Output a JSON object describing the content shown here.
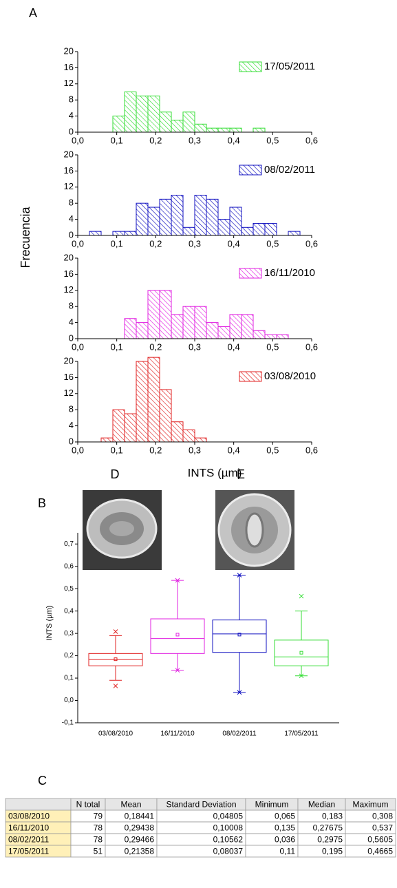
{
  "panel_labels": {
    "a": "A",
    "b": "B",
    "c": "C",
    "d": "D",
    "e": "E"
  },
  "histogram_axes": {
    "xlabel": "INTS (µm)",
    "ylabel": "Frecuencia"
  },
  "chart_data": [
    {
      "type": "histogram",
      "series": [
        {
          "name": "17/05/2011",
          "color": "#33dd33",
          "values": [
            4,
            10,
            9,
            9,
            5,
            3,
            5,
            2,
            1,
            1,
            1,
            0,
            1
          ]
        }
      ],
      "bins": [
        0.09,
        0.12,
        0.15,
        0.18,
        0.21,
        0.24,
        0.27,
        0.3,
        0.33,
        0.36,
        0.39,
        0.42,
        0.45,
        0.48
      ],
      "xlim": [
        0,
        0.6
      ],
      "xticks": [
        {
          "value": 0,
          "label": "0,0"
        },
        {
          "value": 0.1,
          "label": "0,1"
        },
        {
          "value": 0.2,
          "label": "0,2"
        },
        {
          "value": 0.3,
          "label": "0,3"
        },
        {
          "value": 0.4,
          "label": "0,4"
        },
        {
          "value": 0.5,
          "label": "0,5"
        },
        {
          "value": 0.6,
          "label": "0,6"
        }
      ],
      "ylim": [
        0,
        20
      ],
      "yticks": [
        0,
        4,
        8,
        12,
        16,
        20
      ]
    },
    {
      "type": "histogram",
      "series": [
        {
          "name": "08/02/2011",
          "color": "#1010c0",
          "values": [
            1,
            0,
            1,
            1,
            8,
            7,
            9,
            10,
            2,
            10,
            9,
            4,
            7,
            2,
            3,
            3,
            0,
            1
          ]
        }
      ],
      "bins": [
        0.03,
        0.06,
        0.09,
        0.12,
        0.15,
        0.18,
        0.21,
        0.24,
        0.27,
        0.3,
        0.33,
        0.36,
        0.39,
        0.42,
        0.45,
        0.48,
        0.51,
        0.54,
        0.57
      ],
      "xlim": [
        0,
        0.6
      ],
      "xticks": [
        {
          "value": 0,
          "label": "0,0"
        },
        {
          "value": 0.1,
          "label": "0,1"
        },
        {
          "value": 0.2,
          "label": "0,2"
        },
        {
          "value": 0.3,
          "label": "0,3"
        },
        {
          "value": 0.4,
          "label": "0,4"
        },
        {
          "value": 0.5,
          "label": "0,5"
        },
        {
          "value": 0.6,
          "label": "0,6"
        }
      ],
      "ylim": [
        0,
        20
      ],
      "yticks": [
        0,
        4,
        8,
        12,
        16,
        20
      ]
    },
    {
      "type": "histogram",
      "series": [
        {
          "name": "16/11/2010",
          "color": "#e020e0",
          "values": [
            5,
            4,
            12,
            12,
            6,
            8,
            8,
            4,
            3,
            6,
            6,
            2,
            1,
            1
          ]
        }
      ],
      "bins": [
        0.12,
        0.15,
        0.18,
        0.21,
        0.24,
        0.27,
        0.3,
        0.33,
        0.36,
        0.39,
        0.42,
        0.45,
        0.48,
        0.51,
        0.54
      ],
      "xlim": [
        0,
        0.6
      ],
      "xticks": [
        {
          "value": 0,
          "label": "0,0"
        },
        {
          "value": 0.1,
          "label": "0,1"
        },
        {
          "value": 0.2,
          "label": "0,2"
        },
        {
          "value": 0.3,
          "label": "0,3"
        },
        {
          "value": 0.4,
          "label": "0,4"
        },
        {
          "value": 0.5,
          "label": "0,5"
        },
        {
          "value": 0.6,
          "label": "0,6"
        }
      ],
      "ylim": [
        0,
        20
      ],
      "yticks": [
        0,
        4,
        8,
        12,
        16,
        20
      ]
    },
    {
      "type": "histogram",
      "series": [
        {
          "name": "03/08/2010",
          "color": "#e02020",
          "values": [
            1,
            8,
            7,
            20,
            21,
            13,
            5,
            3,
            1
          ]
        }
      ],
      "bins": [
        0.06,
        0.09,
        0.12,
        0.15,
        0.18,
        0.21,
        0.24,
        0.27,
        0.3,
        0.33
      ],
      "xlim": [
        0,
        0.6
      ],
      "xticks": [
        {
          "value": 0,
          "label": "0,0"
        },
        {
          "value": 0.1,
          "label": "0,1"
        },
        {
          "value": 0.2,
          "label": "0,2"
        },
        {
          "value": 0.3,
          "label": "0,3"
        },
        {
          "value": 0.4,
          "label": "0,4"
        },
        {
          "value": 0.5,
          "label": "0,5"
        },
        {
          "value": 0.6,
          "label": "0,6"
        }
      ],
      "ylim": [
        0,
        20
      ],
      "yticks": [
        0,
        4,
        8,
        12,
        16,
        20
      ]
    },
    {
      "type": "box",
      "ylabel": "INTS (µm)",
      "categories": [
        "03/08/2010",
        "16/11/2010",
        "08/02/2011",
        "17/05/2011"
      ],
      "colors": [
        "#e02020",
        "#e020e0",
        "#1010c0",
        "#33dd33"
      ],
      "whisker_low": [
        0.09,
        0.135,
        0.036,
        0.11
      ],
      "q1": [
        0.155,
        0.21,
        0.215,
        0.155
      ],
      "median": [
        0.183,
        0.27675,
        0.2975,
        0.195
      ],
      "q3": [
        0.21,
        0.365,
        0.36,
        0.27
      ],
      "whisker_high": [
        0.29,
        0.537,
        0.5605,
        0.4
      ],
      "mean": [
        0.18441,
        0.29438,
        0.29466,
        0.21358
      ],
      "min": [
        0.065,
        0.135,
        0.036,
        0.11
      ],
      "max": [
        0.308,
        0.537,
        0.5605,
        0.4665
      ],
      "ylim": [
        -0.1,
        0.75
      ],
      "yticks": [
        {
          "value": -0.1,
          "label": "-0,1"
        },
        {
          "value": 0,
          "label": "0,0"
        },
        {
          "value": 0.1,
          "label": "0,1"
        },
        {
          "value": 0.2,
          "label": "0,2"
        },
        {
          "value": 0.3,
          "label": "0,3"
        },
        {
          "value": 0.4,
          "label": "0,4"
        },
        {
          "value": 0.5,
          "label": "0,5"
        },
        {
          "value": 0.6,
          "label": "0,6"
        },
        {
          "value": 0.7,
          "label": "0,7"
        }
      ]
    }
  ],
  "table": {
    "columns": [
      "N total",
      "Mean",
      "Standard Deviation",
      "Minimum",
      "Median",
      "Maximum"
    ],
    "rows": [
      {
        "label": "03/08/2010",
        "cells": [
          "79",
          "0,18441",
          "0,04805",
          "0,065",
          "0,183",
          "0,308"
        ]
      },
      {
        "label": "16/11/2010",
        "cells": [
          "78",
          "0,29438",
          "0,10008",
          "0,135",
          "0,27675",
          "0,537"
        ]
      },
      {
        "label": "08/02/2011",
        "cells": [
          "78",
          "0,29466",
          "0,10562",
          "0,036",
          "0,2975",
          "0,5605"
        ]
      },
      {
        "label": "17/05/2011",
        "cells": [
          "51",
          "0,21358",
          "0,08037",
          "0,11",
          "0,195",
          "0,4665"
        ]
      }
    ]
  }
}
